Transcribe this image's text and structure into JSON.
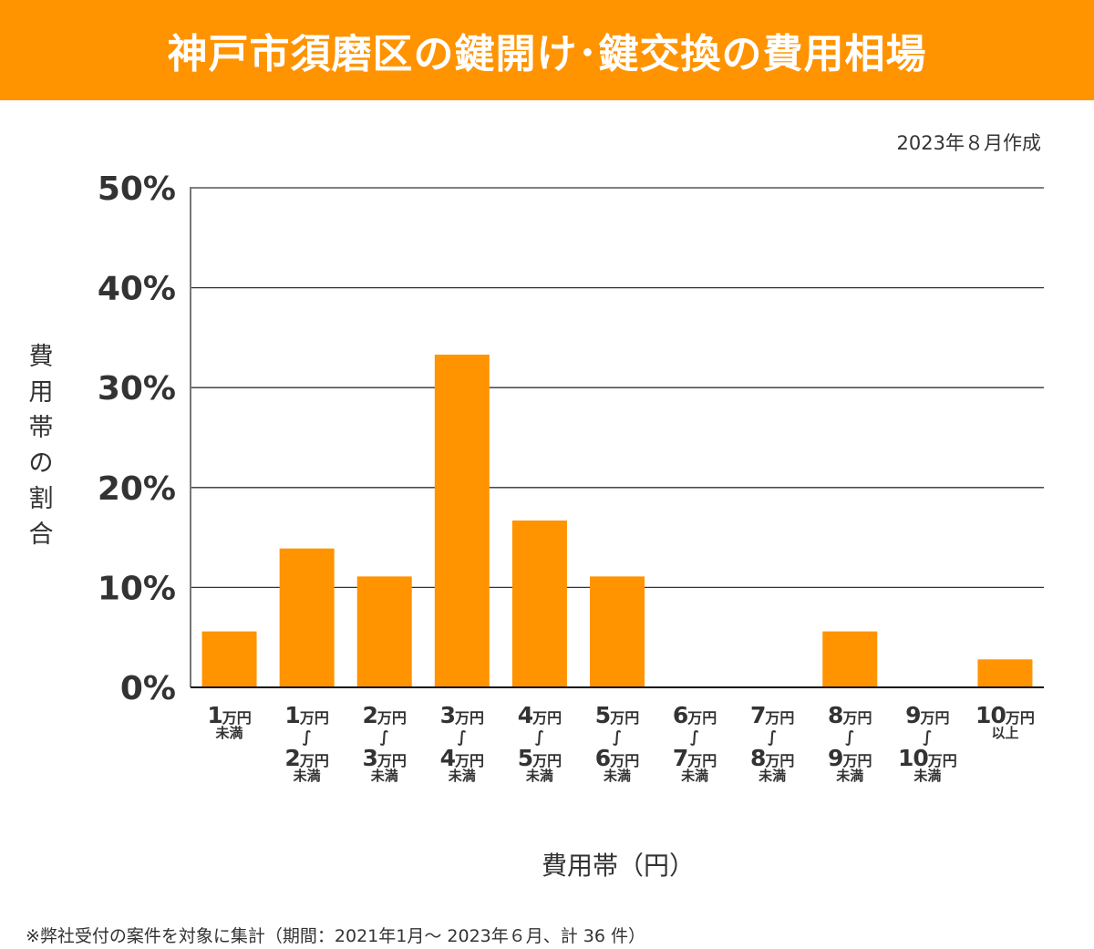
{
  "header": {
    "title": "神戸市須磨区の鍵開け･鍵交換の費用相場"
  },
  "created_note": "2023年８月作成",
  "footnote": "※弊社受付の案件を対象に集計（期間：2021年1月～ 2023年６月、計 36 件）",
  "colors": {
    "header_bg": "#ff9300",
    "bar": "#ff9300",
    "grid": "#333333",
    "axis": "#777777",
    "text": "#333333"
  },
  "chart_data": {
    "type": "bar",
    "title": "神戸市須磨区の鍵開け･鍵交換の費用相場",
    "xlabel": "費用帯（円）",
    "ylabel": "費用帯の割合",
    "ylim": [
      0,
      50
    ],
    "yticks": [
      0,
      10,
      20,
      30,
      40,
      50
    ],
    "ytick_labels": [
      "0%",
      "10%",
      "20%",
      "30%",
      "40%",
      "50%"
    ],
    "grid": true,
    "legend": "none",
    "categories": [
      {
        "lines": [
          {
            "num": "1",
            "unit": "万円"
          },
          {
            "text": "未満"
          }
        ]
      },
      {
        "lines": [
          {
            "num": "1",
            "unit": "万円"
          },
          {
            "text": "∫"
          },
          {
            "num": "2",
            "unit": "万円"
          },
          {
            "text": "未満"
          }
        ]
      },
      {
        "lines": [
          {
            "num": "2",
            "unit": "万円"
          },
          {
            "text": "∫"
          },
          {
            "num": "3",
            "unit": "万円"
          },
          {
            "text": "未満"
          }
        ]
      },
      {
        "lines": [
          {
            "num": "3",
            "unit": "万円"
          },
          {
            "text": "∫"
          },
          {
            "num": "4",
            "unit": "万円"
          },
          {
            "text": "未満"
          }
        ]
      },
      {
        "lines": [
          {
            "num": "4",
            "unit": "万円"
          },
          {
            "text": "∫"
          },
          {
            "num": "5",
            "unit": "万円"
          },
          {
            "text": "未満"
          }
        ]
      },
      {
        "lines": [
          {
            "num": "5",
            "unit": "万円"
          },
          {
            "text": "∫"
          },
          {
            "num": "6",
            "unit": "万円"
          },
          {
            "text": "未満"
          }
        ]
      },
      {
        "lines": [
          {
            "num": "6",
            "unit": "万円"
          },
          {
            "text": "∫"
          },
          {
            "num": "7",
            "unit": "万円"
          },
          {
            "text": "未満"
          }
        ]
      },
      {
        "lines": [
          {
            "num": "7",
            "unit": "万円"
          },
          {
            "text": "∫"
          },
          {
            "num": "8",
            "unit": "万円"
          },
          {
            "text": "未満"
          }
        ]
      },
      {
        "lines": [
          {
            "num": "8",
            "unit": "万円"
          },
          {
            "text": "∫"
          },
          {
            "num": "9",
            "unit": "万円"
          },
          {
            "text": "未満"
          }
        ]
      },
      {
        "lines": [
          {
            "num": "9",
            "unit": "万円"
          },
          {
            "text": "∫"
          },
          {
            "num": "10",
            "unit": "万円"
          },
          {
            "text": "未満"
          }
        ]
      },
      {
        "lines": [
          {
            "num": "10",
            "unit": "万円"
          },
          {
            "text": "以上"
          }
        ]
      }
    ],
    "category_names": [
      "1万円未満",
      "1万円～2万円未満",
      "2万円～3万円未満",
      "3万円～4万円未満",
      "4万円～5万円未満",
      "5万円～6万円未満",
      "6万円～7万円未満",
      "7万円～8万円未満",
      "8万円～9万円未満",
      "9万円～10万円未満",
      "10万円以上"
    ],
    "values": [
      5.6,
      13.9,
      11.1,
      33.3,
      16.7,
      11.1,
      0,
      0,
      5.6,
      0,
      2.8
    ],
    "unit": "%"
  }
}
